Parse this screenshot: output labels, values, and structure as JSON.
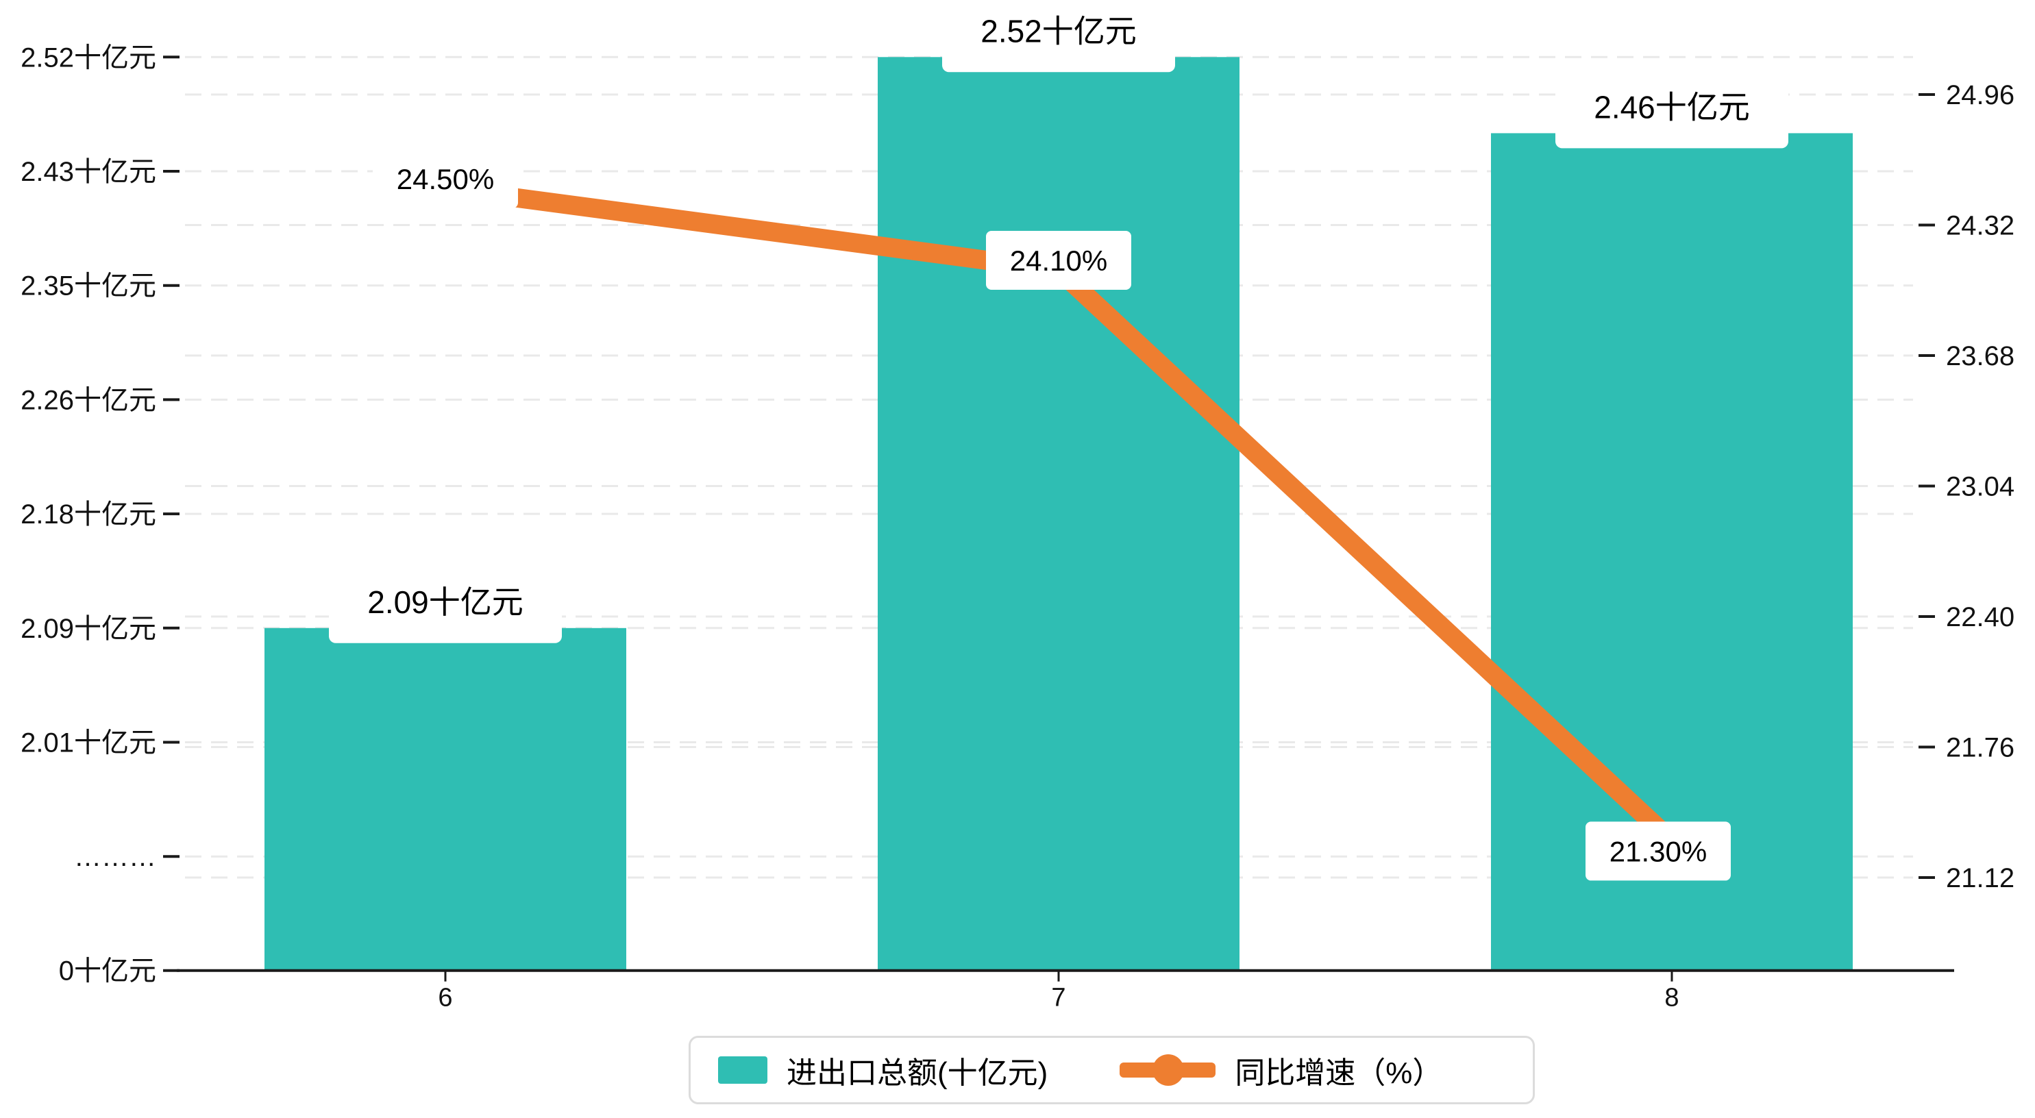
{
  "chart_data": {
    "type": "bar",
    "subtype": "bar-line-combo",
    "categories": [
      "6",
      "7",
      "8"
    ],
    "series": [
      {
        "name": "进出口总额(十亿元)",
        "type": "bar",
        "values": [
          2.09,
          2.52,
          2.46
        ],
        "labels": [
          "2.09十亿元",
          "2.52十亿元",
          "2.46十亿元"
        ],
        "color": "#2fbeb3",
        "axis": "left"
      },
      {
        "name": "同比增速（%）",
        "type": "line",
        "values": [
          24.5,
          24.1,
          21.3
        ],
        "labels": [
          "24.50%",
          "24.10%",
          "21.30%"
        ],
        "color": "#ee7e30",
        "axis": "right"
      }
    ],
    "left_axis": {
      "tick_labels": [
        "2.52十亿元",
        "2.43十亿元",
        "2.35十亿元",
        "2.26十亿元",
        "2.18十亿元",
        "2.09十亿元",
        "2.01十亿元",
        "………",
        "0十亿元"
      ],
      "tick_values": [
        2.52,
        2.43,
        2.35,
        2.26,
        2.18,
        2.09,
        2.01,
        null,
        0
      ],
      "has_break": true,
      "break_label": "………"
    },
    "right_axis": {
      "tick_labels": [
        "24.96",
        "24.32",
        "23.68",
        "23.04",
        "22.40",
        "21.76",
        "21.12"
      ],
      "tick_values": [
        24.96,
        24.32,
        23.68,
        23.04,
        22.4,
        21.76,
        21.12
      ],
      "min": 21.12,
      "max": 24.96
    },
    "grid": "dashed-horizontal",
    "legend_position": "bottom",
    "title": ""
  },
  "legend": {
    "items": [
      {
        "label": "进出口总额(十亿元)",
        "marker": "bar-swatch",
        "color": "#2fbeb3"
      },
      {
        "label": "同比增速（%）",
        "marker": "line-dot",
        "color": "#ee7e30"
      }
    ]
  },
  "colors": {
    "bar": "#2fbeb3",
    "line": "#ee7e30",
    "gridline": "#e9e9e9",
    "axis": "#1a1a1a",
    "label_box": "#ffffff",
    "legend_border": "#dcdcdc",
    "text": "#111111"
  }
}
